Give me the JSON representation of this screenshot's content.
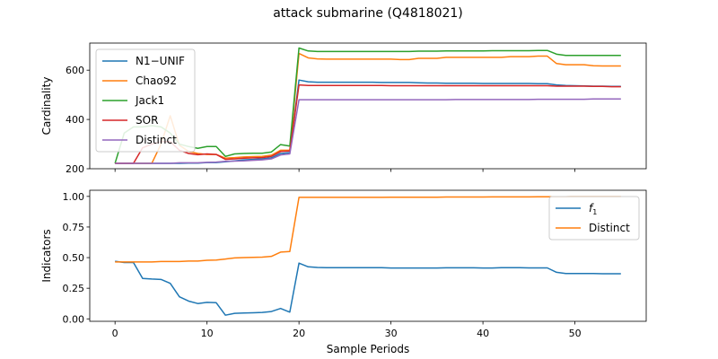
{
  "figure": {
    "title": "attack submarine (Q4818021)"
  },
  "chart_data": [
    {
      "type": "line",
      "title": "",
      "xlabel": "",
      "ylabel": "Cardinality",
      "xlim": [
        -2.75,
        57.75
      ],
      "ylim": [
        200,
        710
      ],
      "xticks": [
        0,
        10,
        20,
        30,
        40,
        50
      ],
      "xtick_labels_visible": false,
      "yticks": [
        200,
        400,
        600
      ],
      "grid": false,
      "legend": "top-left",
      "x": [
        0,
        1,
        2,
        3,
        4,
        5,
        6,
        7,
        8,
        9,
        10,
        11,
        12,
        13,
        14,
        15,
        16,
        17,
        18,
        19,
        20,
        21,
        22,
        23,
        24,
        25,
        26,
        27,
        28,
        29,
        30,
        31,
        32,
        33,
        34,
        35,
        36,
        37,
        38,
        39,
        40,
        41,
        42,
        43,
        44,
        45,
        46,
        47,
        48,
        49,
        50,
        51,
        52,
        53,
        54,
        55
      ],
      "series": [
        {
          "name": "N1−UNIF",
          "color": "#1f77b4",
          "values": [
            222,
            222,
            222,
            222,
            222,
            222,
            222,
            222,
            223,
            223,
            225,
            225,
            228,
            232,
            236,
            238,
            240,
            244,
            262,
            265,
            560,
            553,
            551,
            551,
            551,
            551,
            551,
            551,
            551,
            550,
            550,
            550,
            550,
            549,
            548,
            548,
            547,
            547,
            547,
            547,
            546,
            546,
            546,
            546,
            546,
            546,
            545,
            545,
            540,
            538,
            537,
            536,
            535,
            535,
            534,
            534
          ]
        },
        {
          "name": "Chao92",
          "color": "#ff7f0e",
          "values": [
            222,
            222,
            222,
            222,
            222,
            300,
            415,
            295,
            270,
            262,
            258,
            258,
            243,
            245,
            248,
            249,
            250,
            255,
            275,
            275,
            668,
            650,
            646,
            645,
            645,
            645,
            645,
            645,
            645,
            645,
            645,
            643,
            643,
            648,
            648,
            648,
            652,
            652,
            652,
            652,
            652,
            652,
            652,
            655,
            655,
            655,
            657,
            657,
            627,
            622,
            622,
            622,
            618,
            617,
            617,
            617
          ]
        },
        {
          "name": "Jack1",
          "color": "#2ca02c",
          "values": [
            222,
            345,
            370,
            370,
            375,
            370,
            345,
            300,
            290,
            283,
            290,
            290,
            250,
            260,
            262,
            263,
            263,
            268,
            298,
            292,
            690,
            678,
            676,
            676,
            676,
            676,
            676,
            676,
            676,
            676,
            676,
            676,
            676,
            677,
            677,
            677,
            678,
            678,
            678,
            678,
            678,
            679,
            679,
            679,
            679,
            679,
            680,
            680,
            665,
            660,
            660,
            660,
            660,
            660,
            660,
            660
          ]
        },
        {
          "name": "SOR",
          "color": "#d62728",
          "values": [
            222,
            222,
            222,
            285,
            300,
            310,
            310,
            275,
            262,
            257,
            260,
            258,
            238,
            240,
            243,
            244,
            245,
            250,
            270,
            272,
            540,
            538,
            538,
            538,
            538,
            538,
            538,
            538,
            538,
            538,
            537,
            537,
            537,
            537,
            537,
            537,
            537,
            537,
            537,
            537,
            537,
            537,
            537,
            537,
            537,
            537,
            537,
            537,
            535,
            535,
            535,
            535,
            534,
            534,
            533,
            533
          ]
        },
        {
          "name": "Distinct",
          "color": "#9467bd",
          "values": [
            222,
            222,
            222,
            222,
            222,
            222,
            222,
            224,
            224,
            224,
            226,
            227,
            230,
            231,
            232,
            234,
            236,
            240,
            256,
            260,
            480,
            480,
            480,
            480,
            480,
            480,
            480,
            480,
            480,
            480,
            480,
            480,
            480,
            480,
            480,
            480,
            480,
            481,
            481,
            481,
            481,
            481,
            481,
            481,
            481,
            481,
            482,
            482,
            482,
            482,
            482,
            482,
            483,
            483,
            483,
            483
          ]
        }
      ]
    },
    {
      "type": "line",
      "title": "",
      "xlabel": "Sample Periods",
      "ylabel": "Indicators",
      "xlim": [
        -2.75,
        57.75
      ],
      "ylim": [
        -0.02,
        1.05
      ],
      "xticks": [
        0,
        10,
        20,
        30,
        40,
        50
      ],
      "yticks": [
        0.0,
        0.25,
        0.5,
        0.75,
        1.0
      ],
      "ytick_labels": [
        "0.00",
        "0.25",
        "0.50",
        "0.75",
        "1.00"
      ],
      "grid": false,
      "legend": "top-right",
      "x": [
        0,
        1,
        2,
        3,
        4,
        5,
        6,
        7,
        8,
        9,
        10,
        11,
        12,
        13,
        14,
        15,
        16,
        17,
        18,
        19,
        20,
        21,
        22,
        23,
        24,
        25,
        26,
        27,
        28,
        29,
        30,
        31,
        32,
        33,
        34,
        35,
        36,
        37,
        38,
        39,
        40,
        41,
        42,
        43,
        44,
        45,
        46,
        47,
        48,
        49,
        50,
        51,
        52,
        53,
        54,
        55
      ],
      "series": [
        {
          "name": "f₁",
          "label_main": "f",
          "label_sub": "1",
          "color": "#1f77b4",
          "values": [
            0.47,
            0.46,
            0.46,
            0.33,
            0.325,
            0.322,
            0.29,
            0.18,
            0.145,
            0.125,
            0.135,
            0.132,
            0.03,
            0.045,
            0.048,
            0.05,
            0.052,
            0.06,
            0.085,
            0.055,
            0.455,
            0.425,
            0.42,
            0.418,
            0.418,
            0.418,
            0.418,
            0.418,
            0.418,
            0.418,
            0.415,
            0.415,
            0.415,
            0.415,
            0.415,
            0.415,
            0.417,
            0.417,
            0.417,
            0.417,
            0.415,
            0.415,
            0.418,
            0.418,
            0.418,
            0.416,
            0.416,
            0.416,
            0.38,
            0.37,
            0.37,
            0.37,
            0.37,
            0.368,
            0.368,
            0.368
          ]
        },
        {
          "name": "Distinct",
          "color": "#ff7f0e",
          "values": [
            0.465,
            0.465,
            0.465,
            0.465,
            0.465,
            0.468,
            0.468,
            0.468,
            0.472,
            0.472,
            0.478,
            0.48,
            0.488,
            0.498,
            0.5,
            0.502,
            0.504,
            0.51,
            0.545,
            0.55,
            0.992,
            0.992,
            0.992,
            0.992,
            0.992,
            0.992,
            0.992,
            0.992,
            0.992,
            0.992,
            0.993,
            0.993,
            0.993,
            0.993,
            0.993,
            0.993,
            0.995,
            0.995,
            0.995,
            0.995,
            0.995,
            0.996,
            0.996,
            0.996,
            0.996,
            0.996,
            0.997,
            0.997,
            0.997,
            0.997,
            0.998,
            0.998,
            0.998,
            0.998,
            0.998,
            0.998
          ]
        }
      ]
    }
  ]
}
